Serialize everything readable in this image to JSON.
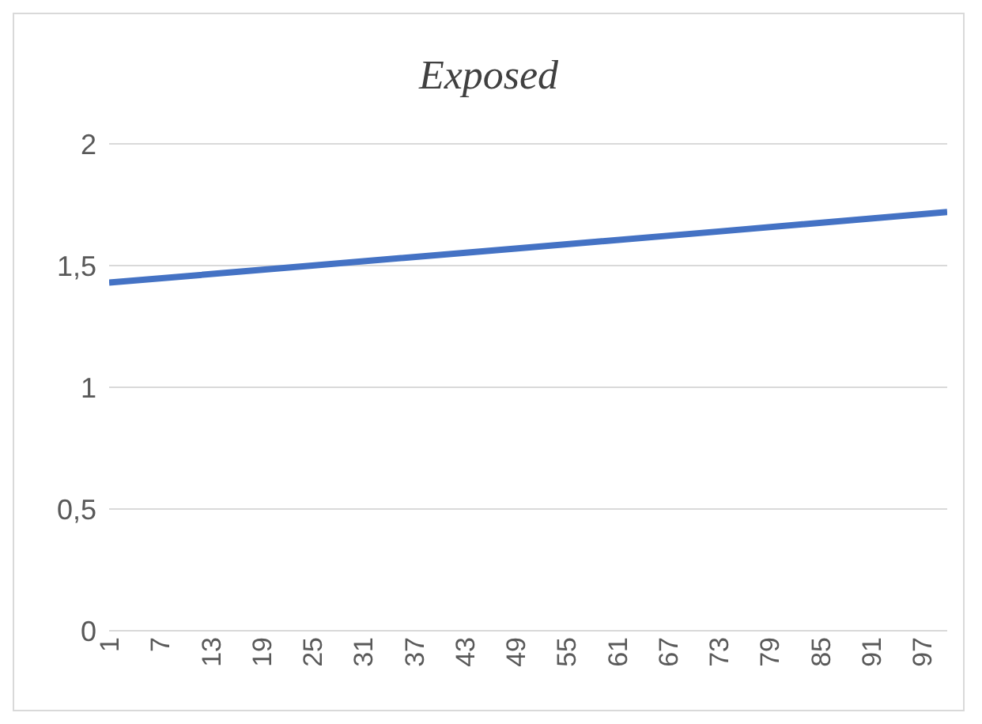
{
  "chart_data": {
    "type": "line",
    "title": "Exposed",
    "x": [
      1,
      25,
      49,
      73,
      100
    ],
    "series": [
      {
        "color": "#4472c4",
        "values": [
          1.43,
          1.5,
          1.57,
          1.64,
          1.72
        ]
      }
    ],
    "xlim": [
      1,
      100
    ],
    "xticks": [
      1,
      7,
      13,
      19,
      25,
      31,
      37,
      43,
      49,
      55,
      61,
      67,
      73,
      79,
      85,
      91,
      97
    ],
    "ylim": [
      0,
      2
    ],
    "yticks": [
      0,
      {
        "value": 0.5,
        "label": "0,5"
      },
      1,
      {
        "value": 1.5,
        "label": "1,5"
      },
      2
    ],
    "grid": "y"
  }
}
